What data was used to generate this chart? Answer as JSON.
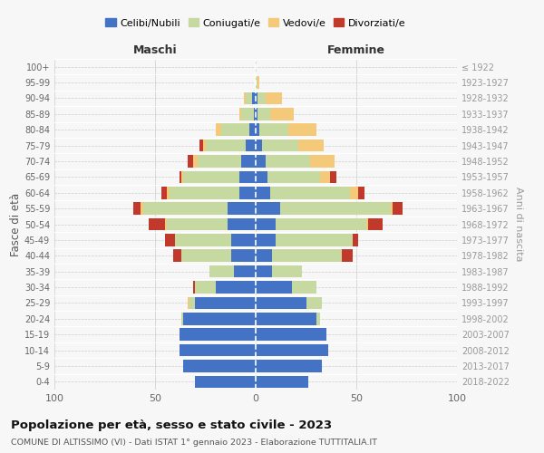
{
  "age_groups": [
    "0-4",
    "5-9",
    "10-14",
    "15-19",
    "20-24",
    "25-29",
    "30-34",
    "35-39",
    "40-44",
    "45-49",
    "50-54",
    "55-59",
    "60-64",
    "65-69",
    "70-74",
    "75-79",
    "80-84",
    "85-89",
    "90-94",
    "95-99",
    "100+"
  ],
  "birth_years": [
    "2018-2022",
    "2013-2017",
    "2008-2012",
    "2003-2007",
    "1998-2002",
    "1993-1997",
    "1988-1992",
    "1983-1987",
    "1978-1982",
    "1973-1977",
    "1968-1972",
    "1963-1967",
    "1958-1962",
    "1953-1957",
    "1948-1952",
    "1943-1947",
    "1938-1942",
    "1933-1937",
    "1928-1932",
    "1923-1927",
    "≤ 1922"
  ],
  "maschi": {
    "celibi": [
      30,
      36,
      38,
      38,
      36,
      30,
      20,
      11,
      12,
      12,
      14,
      14,
      8,
      8,
      7,
      5,
      3,
      1,
      2,
      0,
      0
    ],
    "coniugati": [
      0,
      0,
      0,
      0,
      1,
      3,
      10,
      12,
      25,
      28,
      30,
      42,
      35,
      28,
      22,
      20,
      14,
      6,
      3,
      0,
      0
    ],
    "vedovi": [
      0,
      0,
      0,
      0,
      0,
      1,
      0,
      0,
      0,
      0,
      1,
      1,
      1,
      1,
      2,
      1,
      3,
      1,
      1,
      0,
      0
    ],
    "divorziati": [
      0,
      0,
      0,
      0,
      0,
      0,
      1,
      0,
      4,
      5,
      8,
      4,
      3,
      1,
      3,
      2,
      0,
      0,
      0,
      0,
      0
    ]
  },
  "femmine": {
    "nubili": [
      26,
      33,
      36,
      35,
      30,
      25,
      18,
      8,
      8,
      10,
      10,
      12,
      7,
      6,
      5,
      3,
      2,
      1,
      1,
      0,
      0
    ],
    "coniugate": [
      0,
      0,
      0,
      0,
      2,
      8,
      12,
      15,
      35,
      38,
      45,
      55,
      40,
      26,
      22,
      18,
      14,
      6,
      4,
      1,
      0
    ],
    "vedove": [
      0,
      0,
      0,
      0,
      0,
      0,
      0,
      0,
      0,
      0,
      1,
      1,
      4,
      5,
      12,
      13,
      14,
      12,
      8,
      1,
      0
    ],
    "divorziate": [
      0,
      0,
      0,
      0,
      0,
      0,
      0,
      0,
      5,
      3,
      7,
      5,
      3,
      3,
      0,
      0,
      0,
      0,
      0,
      0,
      0
    ]
  },
  "color_celibi": "#4472c4",
  "color_coniugati": "#c5d9a0",
  "color_vedovi": "#f5c97a",
  "color_divorziati": "#c0392b",
  "bg_color": "#f7f7f7",
  "grid_color": "#cccccc",
  "title": "Popolazione per età, sesso e stato civile - 2023",
  "subtitle": "COMUNE DI ALTISSIMO (VI) - Dati ISTAT 1° gennaio 2023 - Elaborazione TUTTITALIA.IT",
  "xlabel_left": "Maschi",
  "xlabel_right": "Femmine",
  "ylabel_left": "Fasce di età",
  "ylabel_right": "Anni di nascita",
  "xlim": 100
}
